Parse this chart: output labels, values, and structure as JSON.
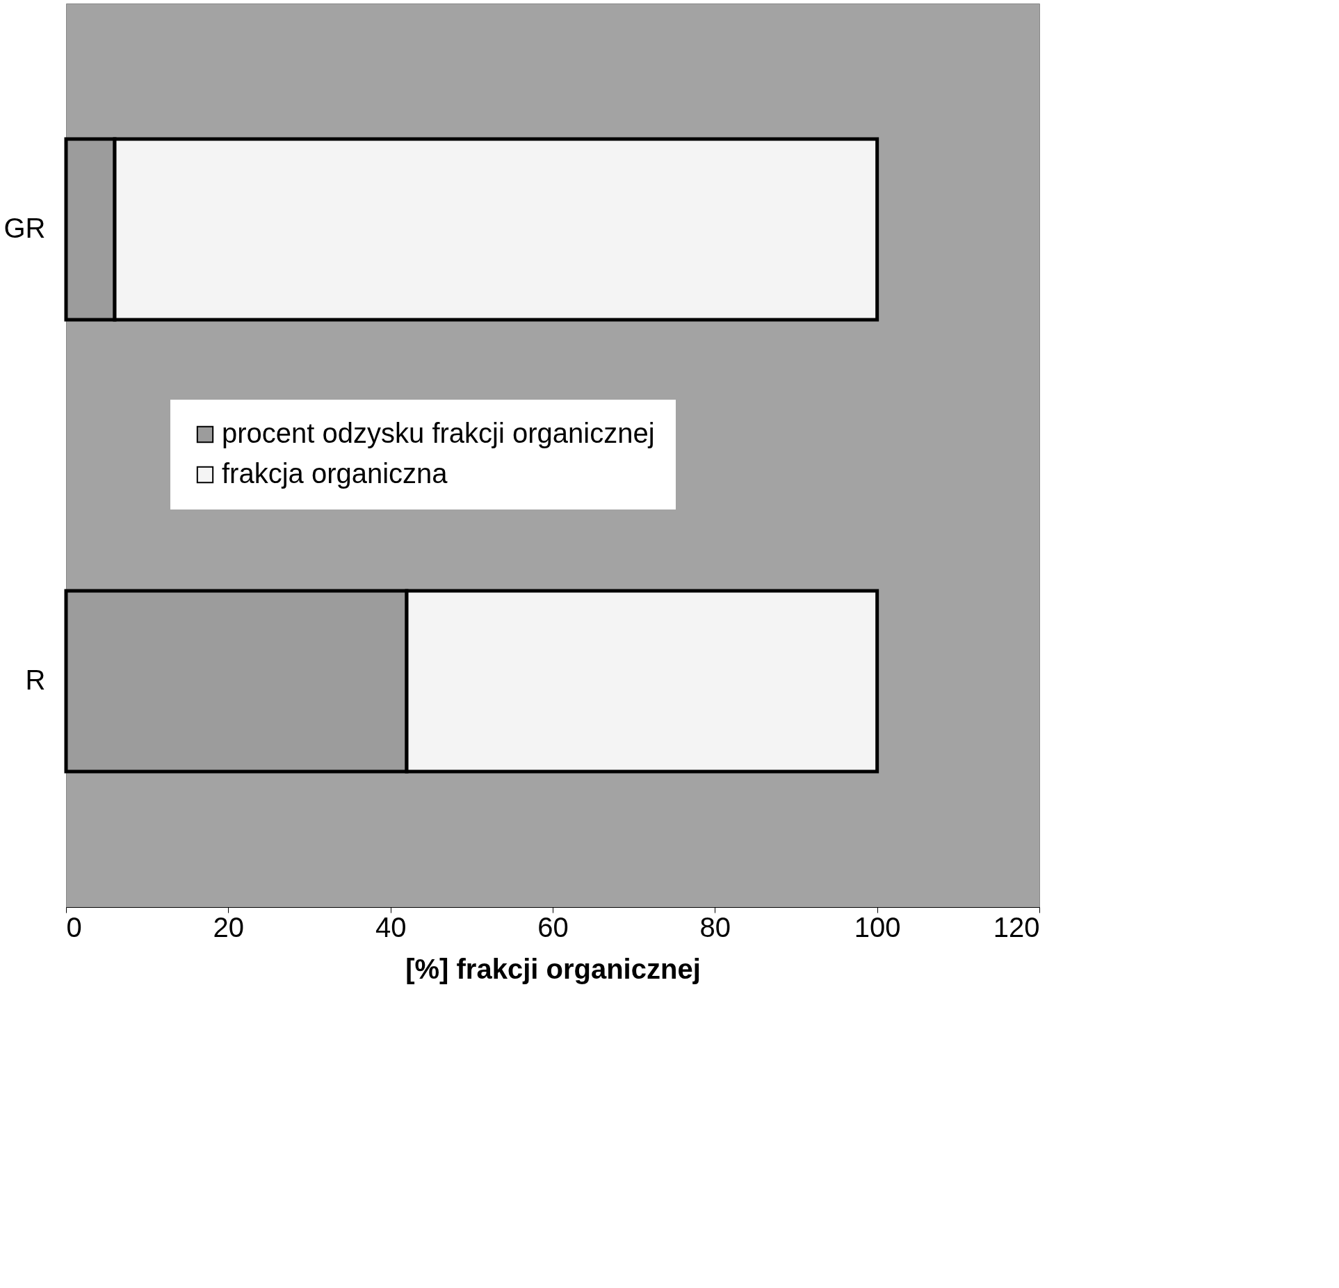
{
  "chart_data": {
    "type": "bar",
    "orientation": "horizontal",
    "stacked": true,
    "xlabel": "[%] frakcji organicznej",
    "categories": [
      "GR",
      "R"
    ],
    "series": [
      {
        "name": "procent odzysku frakcji organicznej",
        "color": "#9c9c9c",
        "values": [
          6,
          42
        ]
      },
      {
        "name": "frakcja organiczna",
        "color": "#f4f4f4",
        "values": [
          94,
          58
        ]
      }
    ],
    "xlim": [
      0,
      120
    ],
    "xticks": [
      0,
      20,
      40,
      60,
      80,
      100,
      120
    ],
    "grid": false,
    "legend": "center"
  }
}
